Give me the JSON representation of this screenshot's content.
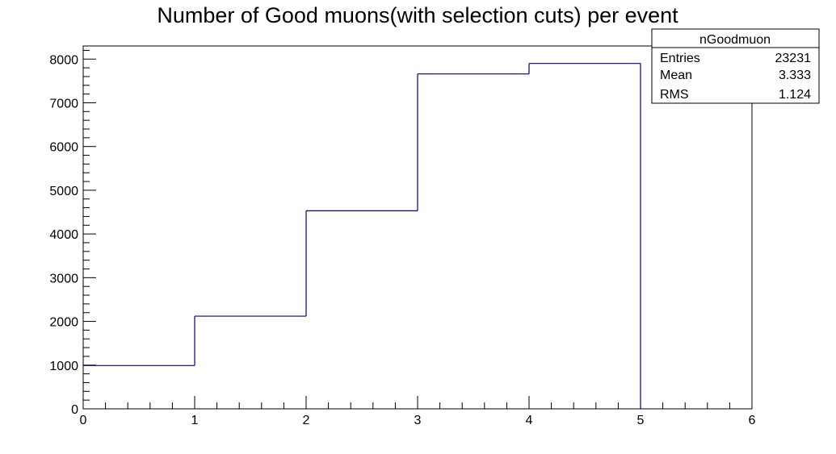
{
  "chart_data": {
    "type": "bar",
    "title": "Number of Good muons(with selection cuts) per event",
    "xlabel": "",
    "ylabel": "",
    "xlim": [
      0,
      6
    ],
    "ylim": [
      0,
      8300
    ],
    "x_ticks": [
      0,
      1,
      2,
      3,
      4,
      5,
      6
    ],
    "y_ticks": [
      0,
      1000,
      2000,
      3000,
      4000,
      5000,
      6000,
      7000,
      8000
    ],
    "bin_edges": [
      0,
      1,
      2,
      3,
      4,
      5,
      6
    ],
    "values": [
      990,
      2120,
      4530,
      7660,
      7900,
      0
    ],
    "histogram_style": "step",
    "line_color": "#00007f",
    "grid": false,
    "stats_box": {
      "name": "nGoodmuon",
      "rows": [
        {
          "label": "Entries",
          "value": "23231"
        },
        {
          "label": "Mean",
          "value": "3.333"
        },
        {
          "label": "RMS",
          "value": "1.124"
        }
      ]
    }
  }
}
